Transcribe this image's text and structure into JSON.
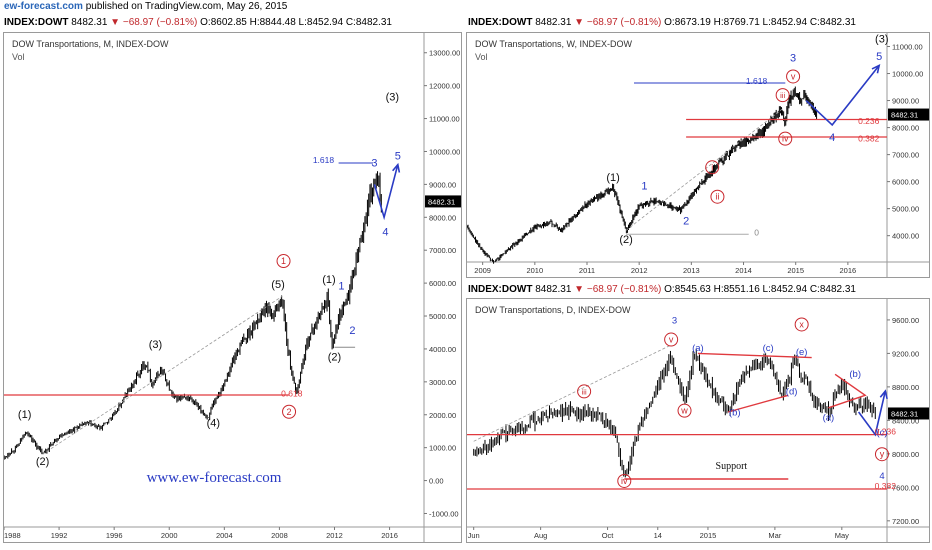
{
  "brand": {
    "site": "ew-forecast.com",
    "rest": " published on TradingView.com, May 26, 2015"
  },
  "headers": {
    "monthly": {
      "symbol": "INDEX:DOWT",
      "price": "8482.31",
      "change": "▼ −68.97 (−0.81%)",
      "ohlc": "O:8602.85 H:8844.48 L:8452.94 C:8482.31"
    },
    "weekly": {
      "symbol": "INDEX:DOWT",
      "price": "8482.31",
      "change": "▼ −68.97 (−0.81%)",
      "ohlc": "O:8673.19 H:8769.71 L:8452.94 C:8482.31"
    },
    "daily": {
      "symbol": "INDEX:DOWT",
      "price": "8482.31",
      "change": "▼ −68.97 (−0.81%)",
      "ohlc": "O:8545.63 H:8551.16 L:8452.94 C:8482.31"
    }
  },
  "watermark": "www.ew-forecast.com",
  "colors": {
    "candle": "#000000",
    "price_tag": "#000000",
    "wave_blue": "#2a3bc4",
    "wave_red": "#c8262c",
    "fib_line": "#e0393e",
    "trend_dashed": "#9a9a9a"
  },
  "chart_data": [
    {
      "id": "monthly",
      "type": "line",
      "title": "DOW Transportations, M, INDEX-DOW",
      "volume_label": "Vol",
      "x_ticks": [
        "1988",
        "1992",
        "1996",
        "2000",
        "2004",
        "2008",
        "2012",
        "2016"
      ],
      "x_tick_years": [
        1988,
        1992,
        1996,
        2000,
        2004,
        2008,
        2012,
        2016
      ],
      "xlim": [
        1988,
        2018.5
      ],
      "y_ticks": [
        "13000.00",
        "12000.00",
        "11000.00",
        "10000.00",
        "9000.00",
        "8000.00",
        "7000.00",
        "6000.00",
        "5000.00",
        "4000.00",
        "3000.00",
        "2000.00",
        "1000.00",
        "0.00",
        "-1000.00"
      ],
      "y_tick_values": [
        13000,
        12000,
        11000,
        10000,
        9000,
        8000,
        7000,
        6000,
        5000,
        4000,
        3000,
        2000,
        1000,
        0,
        -1000
      ],
      "ylim": [
        -1350,
        13600
      ],
      "last_price": "8482.31",
      "series": [
        {
          "x": [
            1988,
            1989,
            1989.6,
            1990.8,
            1992,
            1994,
            1995,
            1996,
            1997,
            1998.3,
            1998.8,
            1999.4,
            2000.3,
            2001.5,
            2002.8,
            2003.2,
            2004,
            2005,
            2006,
            2007,
            2007.5,
            2008.2,
            2008.6,
            2009.2,
            2010,
            2011.5,
            2011.8,
            2012.5,
            2013,
            2014,
            2014.9,
            2015.2,
            2015.4
          ],
          "y": [
            700,
            1050,
            1500,
            800,
            1350,
            1750,
            1600,
            2000,
            2700,
            3600,
            2900,
            3400,
            2500,
            2500,
            1900,
            2300,
            3000,
            4000,
            4600,
            5300,
            5000,
            5500,
            4000,
            2600,
            4200,
            5600,
            4100,
            5200,
            5600,
            7500,
            9100,
            8900,
            8482
          ]
        }
      ],
      "annotations": {
        "waves_black": [
          {
            "text": "(1)",
            "x": 1989.5,
            "y": 1900
          },
          {
            "text": "(2)",
            "x": 1990.8,
            "y": 480
          },
          {
            "text": "(3)",
            "x": 1999,
            "y": 4030
          },
          {
            "text": "(4)",
            "x": 2003.2,
            "y": 1650
          },
          {
            "text": "(5)",
            "x": 2007.9,
            "y": 5850
          },
          {
            "text": "(1)",
            "x": 2011.6,
            "y": 6000
          },
          {
            "text": "(2)",
            "x": 2012,
            "y": 3650
          },
          {
            "text": "(3)",
            "x": 2016.2,
            "y": 11550
          }
        ],
        "waves_blue": [
          {
            "text": "1",
            "x": 2012.5,
            "y": 5800
          },
          {
            "text": "2",
            "x": 2013.3,
            "y": 4450
          },
          {
            "text": "3",
            "x": 2014.9,
            "y": 9550
          },
          {
            "text": "4",
            "x": 2015.7,
            "y": 7450
          },
          {
            "text": "5",
            "x": 2016.6,
            "y": 9750
          }
        ],
        "waves_red_circled": [
          {
            "text": "1",
            "x": 2008.3,
            "y": 6580
          },
          {
            "text": "2",
            "x": 2008.7,
            "y": 2000
          }
        ],
        "fib_labels": [
          {
            "text": "1.618",
            "x": 2011.2,
            "y": 9650,
            "color": "blue"
          },
          {
            "text": "0.618",
            "x": 2008.9,
            "y": 2550,
            "color": "red"
          }
        ]
      }
    },
    {
      "id": "weekly",
      "type": "line",
      "title": "DOW Transportations, W, INDEX-DOW",
      "volume_label": "Vol",
      "x_ticks": [
        "2009",
        "2010",
        "2011",
        "2012",
        "2013",
        "2014",
        "2015",
        "2016"
      ],
      "x_tick_years": [
        2009,
        2010,
        2011,
        2012,
        2013,
        2014,
        2015,
        2016
      ],
      "xlim": [
        2008.7,
        2016.75
      ],
      "y_ticks": [
        "11000.00",
        "10000.00",
        "9000.00",
        "8000.00",
        "7000.00",
        "6000.00",
        "5000.00",
        "4000.00"
      ],
      "y_tick_values": [
        11000,
        10000,
        9000,
        8000,
        7000,
        6000,
        5000,
        4000
      ],
      "ylim": [
        3100,
        11500
      ],
      "last_price": "8482.31",
      "series": [
        {
          "x": [
            2008.7,
            2008.9,
            2009.2,
            2009.5,
            2010,
            2010.3,
            2010.5,
            2011,
            2011.3,
            2011.5,
            2011.75,
            2012,
            2012.3,
            2012.8,
            2013,
            2013.3,
            2013.6,
            2013.9,
            2014.2,
            2014.5,
            2014.7,
            2014.8,
            2014.85,
            2014.95,
            2015.1,
            2015.2,
            2015.4
          ],
          "y": [
            4300,
            3700,
            3000,
            3500,
            4300,
            4500,
            4200,
            5200,
            5500,
            5800,
            4200,
            5100,
            5300,
            4950,
            5500,
            6200,
            6800,
            7400,
            7600,
            8100,
            8600,
            8200,
            8800,
            9300,
            9000,
            9200,
            8482
          ]
        }
      ],
      "annotations": {
        "waves_black": [
          {
            "text": "(1)",
            "x": 2011.5,
            "y": 6020
          },
          {
            "text": "(2)",
            "x": 2011.75,
            "y": 3730
          },
          {
            "text": "(3)",
            "x": 2016.65,
            "y": 11150
          }
        ],
        "waves_blue": [
          {
            "text": "1",
            "x": 2012.1,
            "y": 5700
          },
          {
            "text": "2",
            "x": 2012.9,
            "y": 4420
          },
          {
            "text": "3",
            "x": 2014.95,
            "y": 10450
          },
          {
            "text": "4",
            "x": 2015.7,
            "y": 7500
          },
          {
            "text": "5",
            "x": 2016.6,
            "y": 10500
          }
        ],
        "waves_red_circled": [
          {
            "text": "i",
            "x": 2013.4,
            "y": 6420
          },
          {
            "text": "ii",
            "x": 2013.5,
            "y": 5330
          },
          {
            "text": "iii",
            "x": 2014.75,
            "y": 9090
          },
          {
            "text": "iv",
            "x": 2014.8,
            "y": 7480
          },
          {
            "text": "v",
            "x": 2014.95,
            "y": 9780
          }
        ],
        "fib_labels": [
          {
            "text": "1.618",
            "x": 2014.25,
            "y": 9620,
            "color": "blue"
          },
          {
            "text": "0.236",
            "x": 2016.4,
            "y": 8140,
            "color": "red"
          },
          {
            "text": "0.382",
            "x": 2016.4,
            "y": 7480,
            "color": "red"
          },
          {
            "text": "0",
            "x": 2014.25,
            "y": 4010,
            "color": "gray"
          }
        ]
      }
    },
    {
      "id": "daily",
      "type": "line",
      "title": "DOW Transportations, D, INDEX-DOW",
      "x_ticks": [
        "Jun",
        "Aug",
        "Oct",
        "14",
        "2015",
        "Mar",
        "May"
      ],
      "x_tick_months": [
        0,
        2,
        4,
        5.5,
        7,
        9,
        11
      ],
      "xlim": [
        -0.2,
        12.35
      ],
      "y_ticks": [
        "9600.00",
        "9200.00",
        "8800.00",
        "8400.00",
        "8000.00",
        "7600.00",
        "7200.00"
      ],
      "y_tick_values": [
        9600,
        9200,
        8800,
        8400,
        8000,
        7600,
        7200
      ],
      "ylim": [
        7150,
        9850
      ],
      "last_price": "8482.31",
      "series": [
        {
          "x": [
            0,
            0.8,
            1.5,
            2.5,
            3.5,
            4.2,
            4.5,
            5,
            5.9,
            6.3,
            6.6,
            7.2,
            7.6,
            8,
            8.8,
            9.2,
            9.6,
            10.2,
            10.6,
            11,
            11.4,
            11.7,
            12
          ],
          "y": [
            8000,
            8200,
            8350,
            8500,
            8500,
            8300,
            7700,
            8400,
            9150,
            8650,
            9200,
            8700,
            8500,
            8900,
            9150,
            8700,
            9100,
            8650,
            8500,
            8850,
            8550,
            8600,
            8482
          ]
        }
      ],
      "annotations": {
        "waves_blue": [
          {
            "text": "3",
            "x": 6.0,
            "y": 9560
          },
          {
            "text": "(a)",
            "x": 6.7,
            "y": 9230
          },
          {
            "text": "(b)",
            "x": 7.8,
            "y": 8460
          },
          {
            "text": "(c)",
            "x": 8.8,
            "y": 9230
          },
          {
            "text": "(d)",
            "x": 9.5,
            "y": 8710
          },
          {
            "text": "(e)",
            "x": 9.8,
            "y": 9180
          },
          {
            "text": "(a)",
            "x": 10.6,
            "y": 8400
          },
          {
            "text": "(b)",
            "x": 11.4,
            "y": 8920
          },
          {
            "text": "(c)",
            "x": 12.2,
            "y": 8220
          },
          {
            "text": "4",
            "x": 12.2,
            "y": 7700
          }
        ],
        "waves_red_circled": [
          {
            "text": "iii",
            "x": 3.3,
            "y": 8710
          },
          {
            "text": "iv",
            "x": 4.5,
            "y": 7640
          },
          {
            "text": "v",
            "x": 5.9,
            "y": 9330
          },
          {
            "text": "w",
            "x": 6.3,
            "y": 8480
          },
          {
            "text": "x",
            "x": 9.8,
            "y": 9510
          },
          {
            "text": "y",
            "x": 12.2,
            "y": 7960
          }
        ],
        "fib_labels": [
          {
            "text": "0.236",
            "x": 12.3,
            "y": 8230,
            "color": "red"
          },
          {
            "text": "0.382",
            "x": 12.3,
            "y": 7580,
            "color": "red"
          }
        ],
        "support_label": {
          "text": "Support",
          "x": 7.7,
          "y": 7820
        }
      }
    }
  ]
}
